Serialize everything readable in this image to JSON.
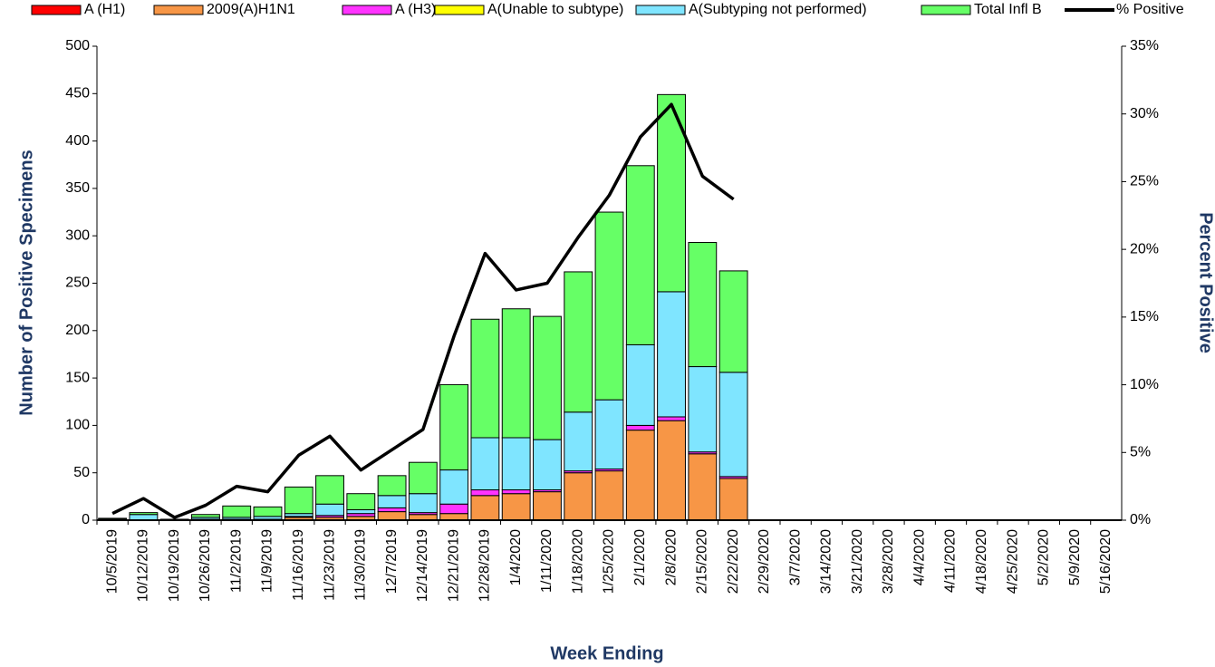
{
  "chart_data": {
    "type": "bar",
    "stacked": true,
    "x_label": "Week Ending",
    "y_label": "Number of  Positive Specimens",
    "y2_label": "Percent Positive",
    "categories": [
      "10/5/2019",
      "10/12/2019",
      "10/19/2019",
      "10/26/2019",
      "11/2/2019",
      "11/9/2019",
      "11/16/2019",
      "11/23/2019",
      "11/30/2019",
      "12/7/2019",
      "12/14/2019",
      "12/21/2019",
      "12/28/2019",
      "1/4/2020",
      "1/11/2020",
      "1/18/2020",
      "1/25/2020",
      "2/1/2020",
      "2/8/2020",
      "2/15/2020",
      "2/22/2020",
      "2/29/2020",
      "3/7/2020",
      "3/14/2020",
      "3/21/2020",
      "3/28/2020",
      "4/4/2020",
      "4/11/2020",
      "4/18/2020",
      "4/25/2020",
      "5/2/2020",
      "5/9/2020",
      "5/16/2020"
    ],
    "series": [
      {
        "name": "A (H1)",
        "color": "#ff0000",
        "values": [
          0,
          0,
          0,
          0,
          0,
          0,
          0,
          0,
          0,
          0,
          0,
          0,
          0,
          0,
          0,
          0,
          0,
          0,
          0,
          0,
          0,
          0,
          0,
          0,
          0,
          0,
          0,
          0,
          0,
          0,
          0,
          0,
          0
        ]
      },
      {
        "name": "2009(A)H1N1",
        "color": "#f79646",
        "values": [
          0,
          0,
          0,
          1,
          1,
          1,
          3,
          3,
          4,
          9,
          6,
          7,
          26,
          28,
          30,
          50,
          52,
          95,
          105,
          70,
          44,
          0,
          0,
          0,
          0,
          0,
          0,
          0,
          0,
          0,
          0,
          0,
          0
        ]
      },
      {
        "name": "A (H3)",
        "color": "#ff33ff",
        "values": [
          0,
          0,
          0,
          0,
          0,
          0,
          1,
          2,
          3,
          4,
          2,
          10,
          6,
          4,
          2,
          2,
          2,
          5,
          4,
          2,
          2,
          0,
          0,
          0,
          0,
          0,
          0,
          0,
          0,
          0,
          0,
          0,
          0
        ]
      },
      {
        "name": "A(Unable to subtype)",
        "color": "#ffff00",
        "values": [
          0,
          0,
          0,
          0,
          0,
          0,
          0,
          0,
          0,
          0,
          0,
          0,
          0,
          0,
          0,
          0,
          0,
          0,
          0,
          0,
          0,
          0,
          0,
          0,
          0,
          0,
          0,
          0,
          0,
          0,
          0,
          0,
          0
        ]
      },
      {
        "name": "A(Subtyping not performed)",
        "color": "#7fe5ff",
        "values": [
          1,
          6,
          0,
          2,
          2,
          3,
          3,
          12,
          4,
          13,
          20,
          36,
          55,
          55,
          53,
          62,
          73,
          85,
          132,
          90,
          110,
          0,
          0,
          0,
          0,
          0,
          0,
          0,
          0,
          0,
          0,
          0,
          0
        ]
      },
      {
        "name": "Total Infl B",
        "color": "#66ff66",
        "values": [
          1,
          2,
          1,
          3,
          12,
          10,
          28,
          30,
          17,
          21,
          33,
          90,
          125,
          136,
          130,
          148,
          198,
          189,
          208,
          131,
          107,
          0,
          0,
          0,
          0,
          0,
          0,
          0,
          0,
          0,
          0,
          0,
          0
        ]
      },
      {
        "name": "% Positive",
        "color": "#000000",
        "type": "line",
        "axis": "y2",
        "values": [
          0.5,
          1.6,
          0.2,
          1.1,
          2.5,
          2.1,
          4.8,
          6.2,
          3.7,
          5.2,
          6.7,
          13.6,
          19.7,
          17.0,
          17.5,
          20.9,
          24.0,
          28.3,
          30.7,
          25.4,
          23.7,
          null,
          null,
          null,
          null,
          null,
          null,
          null,
          null,
          null,
          null,
          null,
          null
        ]
      }
    ],
    "ylim": [
      0,
      500
    ],
    "yticks": [
      0,
      50,
      100,
      150,
      200,
      250,
      300,
      350,
      400,
      450,
      500
    ],
    "y2lim": [
      0,
      35
    ],
    "y2ticks": [
      {
        "value": 0,
        "label": "0%"
      },
      {
        "value": 5,
        "label": "5%"
      },
      {
        "value": 10,
        "label": "10%"
      },
      {
        "value": 15,
        "label": "15%"
      },
      {
        "value": 20,
        "label": "20%"
      },
      {
        "value": 25,
        "label": "25%"
      },
      {
        "value": 30,
        "label": "30%"
      },
      {
        "value": 35,
        "label": "35%"
      }
    ],
    "grid": false,
    "legend": "top"
  }
}
